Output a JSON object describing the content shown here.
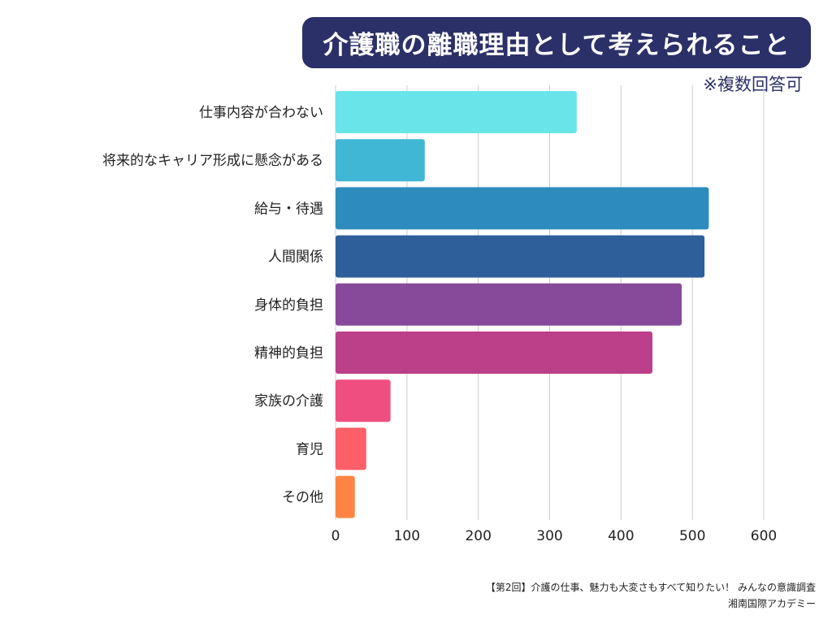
{
  "header": {
    "title": "介護職の離職理由として考えられること",
    "note": "※複数回答可"
  },
  "colors": {
    "title_bg": "#2b3068",
    "bars": [
      "#69e5ea",
      "#41b7d6",
      "#2d8cbd",
      "#2e5f9b",
      "#874a9b",
      "#bb3f89",
      "#ef4f80",
      "#fd5f68",
      "#fe8446"
    ]
  },
  "chart_data": {
    "type": "bar",
    "orientation": "horizontal",
    "categories": [
      "仕事内容が合わない",
      "将来的なキャリア形成に懸念がある",
      "給与・待遇",
      "人間関係",
      "身体的負担",
      "精神的負担",
      "家族の介護",
      "育児",
      "その他"
    ],
    "values": [
      338,
      125,
      523,
      517,
      485,
      444,
      77,
      43,
      27
    ],
    "xlim": [
      0,
      600
    ],
    "xticks": [
      0,
      100,
      200,
      300,
      400,
      500,
      600
    ],
    "grid": true,
    "legend": "none"
  },
  "source": {
    "line1": "【第2回】介護の仕事、魅力も大変さもすべて知りたい！ みんなの意識調査",
    "line2": "湘南国際アカデミー"
  }
}
